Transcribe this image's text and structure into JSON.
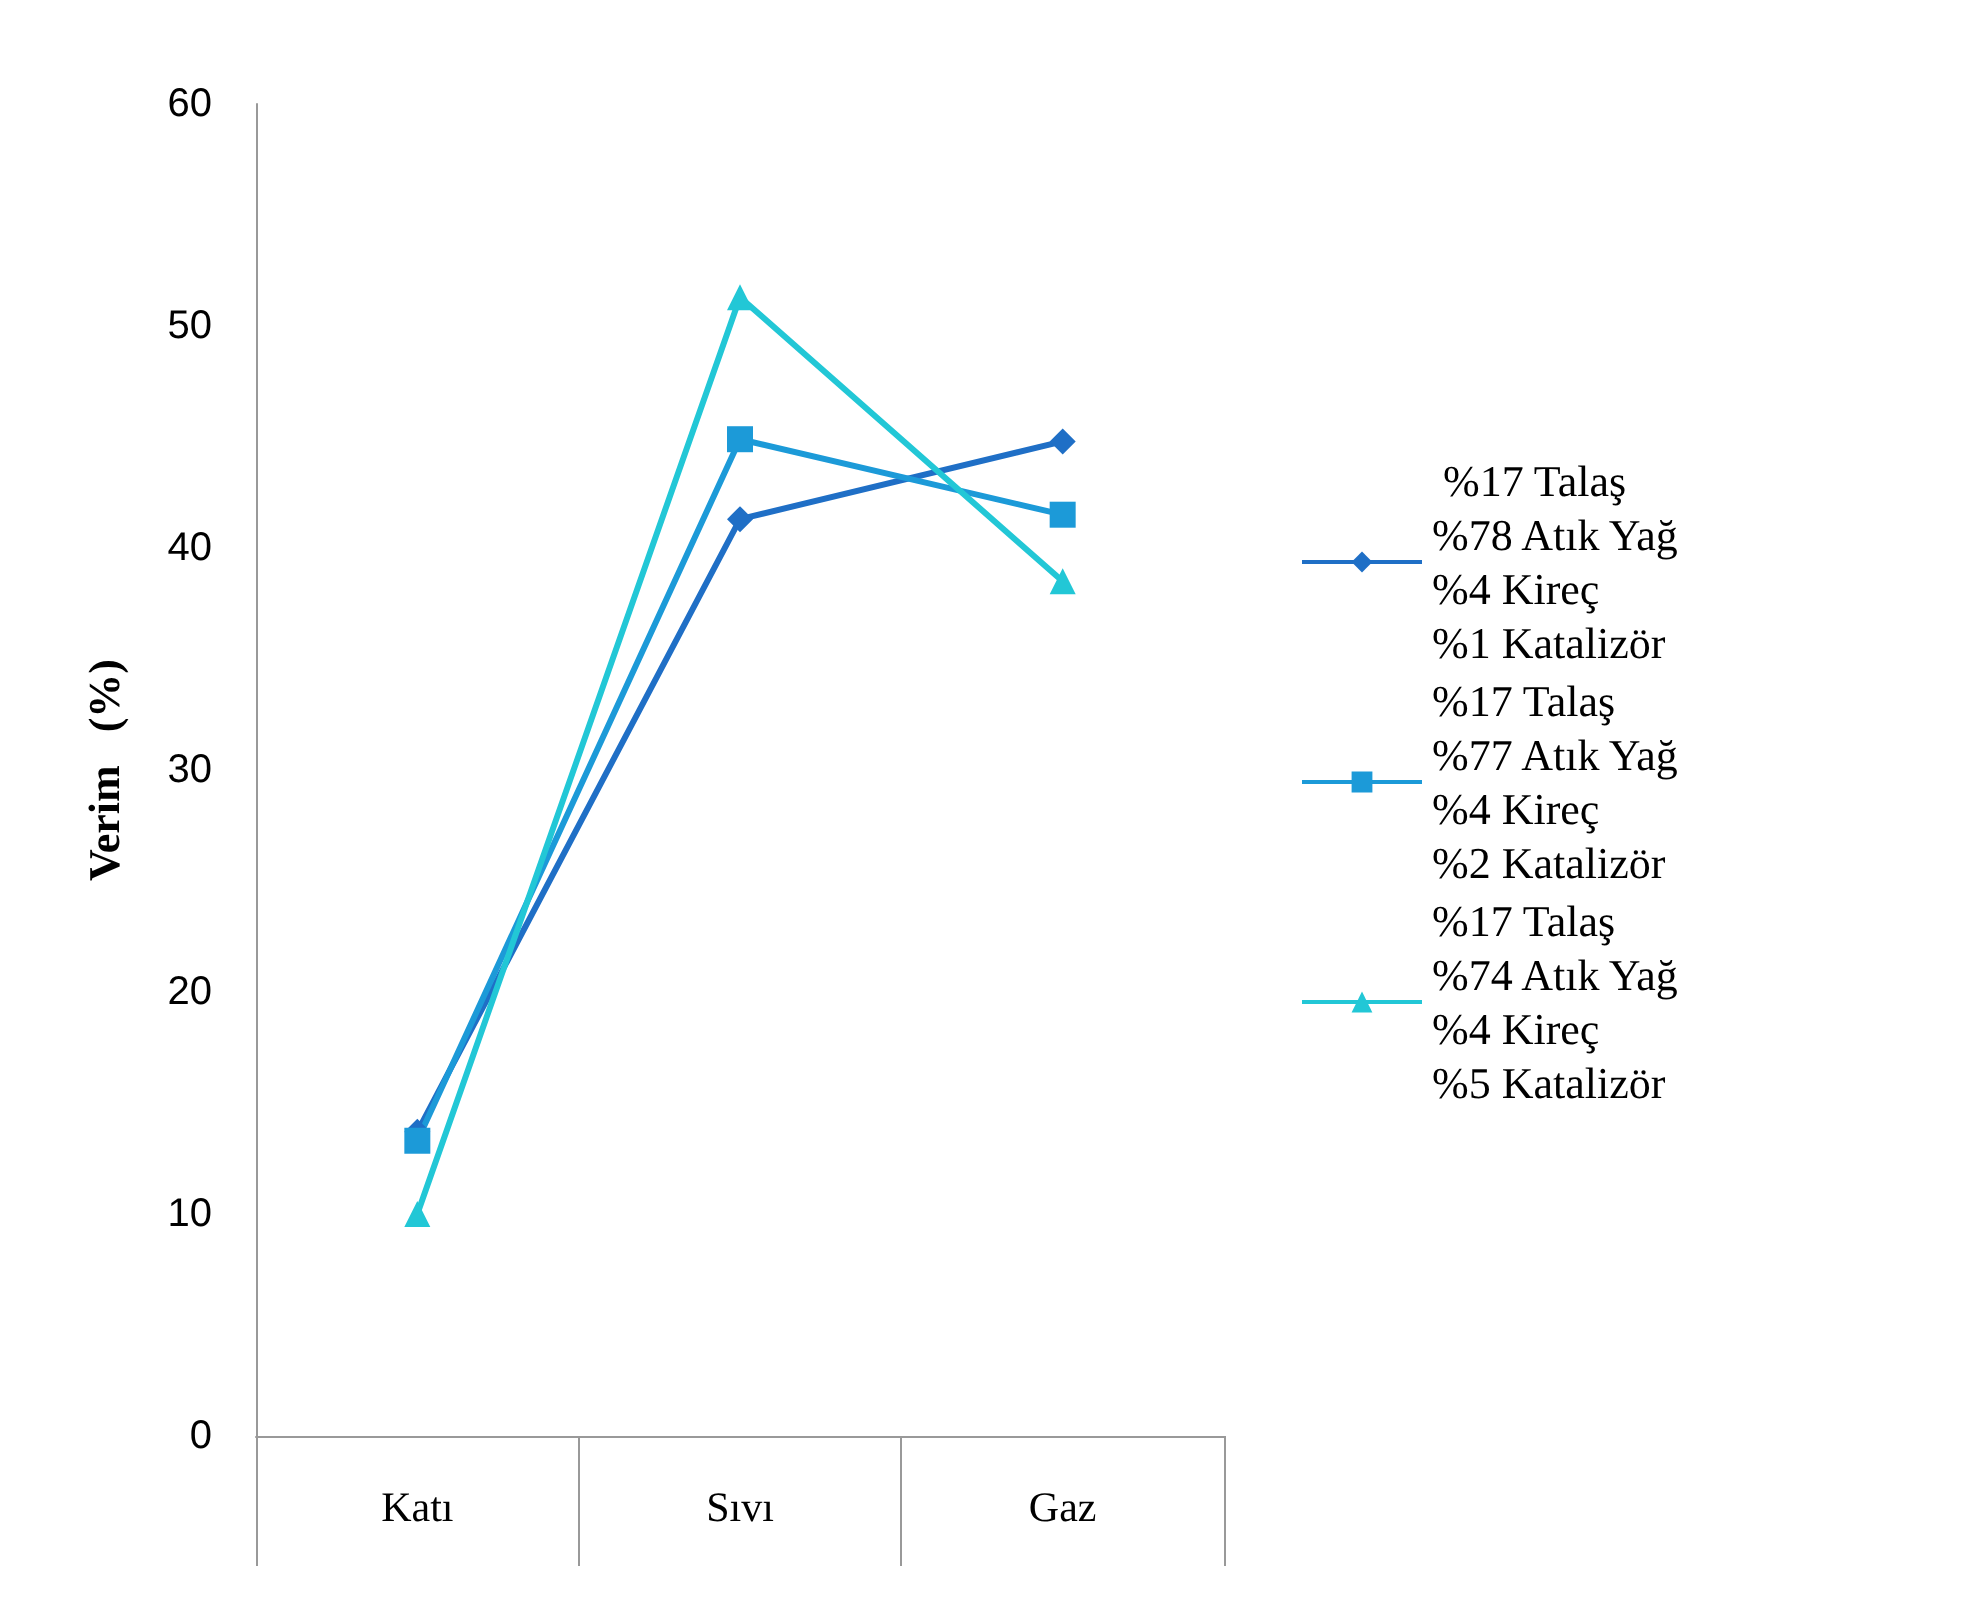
{
  "chart_data": {
    "type": "line",
    "ylabel": "Verim   (%)",
    "categories": [
      "Katı",
      "Sıvı",
      "Gaz"
    ],
    "series": [
      {
        "name": " %17 Talaş\n%78 Atık Yağ\n%4 Kireç\n%1 Katalizör",
        "color": "#1f6fc6",
        "marker": "diamond",
        "values": [
          13.7,
          41.3,
          44.8
        ]
      },
      {
        "name": "%17 Talaş\n%77 Atık Yağ\n%4 Kireç\n%2 Katalizör",
        "color": "#1c9ad8",
        "marker": "square",
        "values": [
          13.3,
          44.9,
          41.5
        ]
      },
      {
        "name": "%17 Talaş\n%74 Atık Yağ\n%4 Kireç\n%5 Katalizör",
        "color": "#22c7d6",
        "marker": "triangle",
        "values": [
          10.0,
          51.3,
          38.5
        ]
      }
    ],
    "ylim": [
      0,
      60
    ],
    "yticks": [
      0,
      10,
      20,
      30,
      40,
      50,
      60
    ],
    "grid": false,
    "legend": "right",
    "line_style": "solid"
  }
}
